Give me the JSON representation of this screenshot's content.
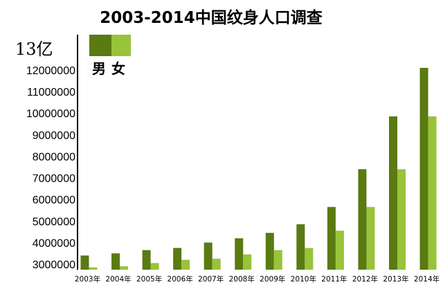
{
  "chart_data": {
    "type": "bar",
    "title": "2003-2014中国纹身人口调查",
    "unit_label": "13亿",
    "categories": [
      "2003年",
      "2004年",
      "2005年",
      "2006年",
      "2007年",
      "2008年",
      "2009年",
      "2010年",
      "2011年",
      "2012年",
      "2013年",
      "2014年"
    ],
    "series": [
      {
        "name": "男",
        "color": "#5a7a12",
        "values": [
          3400000,
          3500000,
          3650000,
          3750000,
          4000000,
          4200000,
          4450000,
          4850000,
          5650000,
          7400000,
          9850000,
          12100000
        ]
      },
      {
        "name": "女",
        "color": "#98c33a",
        "values": [
          2850000,
          2900000,
          3050000,
          3200000,
          3250000,
          3450000,
          3650000,
          3750000,
          4550000,
          5650000,
          7400000,
          9850000
        ]
      }
    ],
    "yticks": [
      "3000000",
      "4000000",
      "5000000",
      "6000000",
      "7000000",
      "8000000",
      "9000000",
      "10000000",
      "11000000",
      "12000000"
    ],
    "ylim": [
      2800000,
      12400000
    ],
    "xlabel": "",
    "ylabel": "",
    "grid": false,
    "legend_position": "top-left"
  }
}
